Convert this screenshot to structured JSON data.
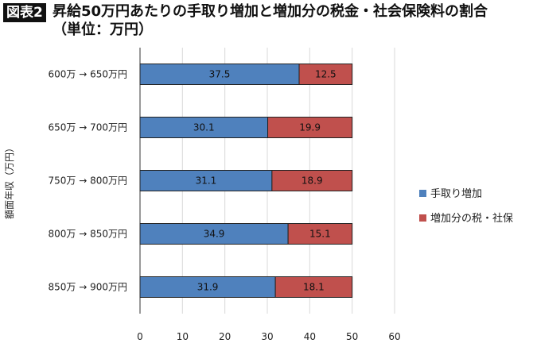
{
  "badge": "図表2",
  "title_line1": "昇給50万円あたりの手取り増加と増加分の税金・社会保険料の割合",
  "title_line2": "（単位：万円）",
  "chart_data": {
    "type": "bar",
    "orientation": "horizontal",
    "stacked": true,
    "ylabel": "額面年収（万円）",
    "categories": [
      "600万 → 650万円",
      "650万 → 700万円",
      "750万 → 800万円",
      "800万 → 850万円",
      "850万 → 900万円"
    ],
    "series": [
      {
        "name": "手取り増加",
        "values": [
          37.5,
          30.1,
          31.1,
          34.9,
          31.9
        ],
        "color": "#4f81bd"
      },
      {
        "name": "増加分の税・社保",
        "values": [
          12.5,
          19.9,
          18.9,
          15.1,
          18.1
        ],
        "color": "#c0504d"
      }
    ],
    "xlim": [
      0,
      60
    ],
    "xticks": [
      0,
      10,
      20,
      30,
      40,
      50,
      60
    ],
    "grid": true,
    "legend": "right",
    "data_labels": true
  }
}
